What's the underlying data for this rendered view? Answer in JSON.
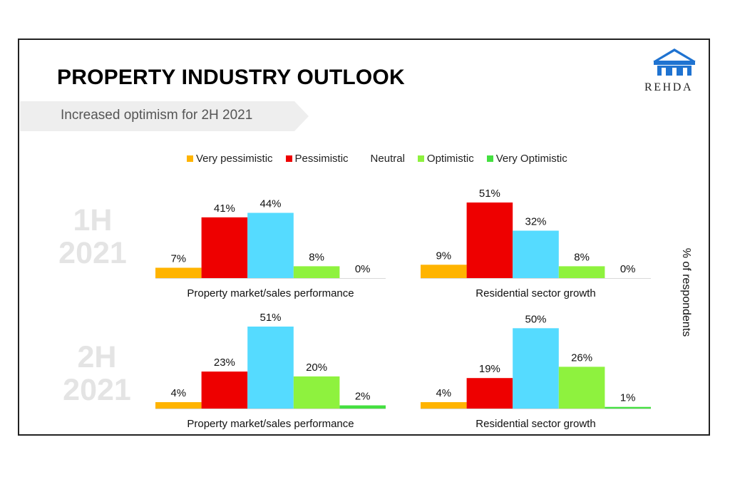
{
  "header": {
    "title": "PROPERTY INDUSTRY OUTLOOK",
    "subtitle": "Increased optimism for 2H 2021"
  },
  "logo": {
    "text": "REHDA",
    "icon": "house-logo-icon"
  },
  "colors": {
    "very_pessimistic": "#ffb400",
    "pessimistic": "#ee0000",
    "neutral": "#55dbff",
    "optimistic": "#8ef23e",
    "very_optimistic": "#44e040",
    "banner": "#eeeeee",
    "logo": "#1f73d1"
  },
  "legend": [
    {
      "label": "Very pessimistic",
      "color": "#ffb400"
    },
    {
      "label": "Pessimistic",
      "color": "#ee0000"
    },
    {
      "label": "Neutral",
      "color": "#55dbff"
    },
    {
      "label": "Optimistic",
      "color": "#8ef23e"
    },
    {
      "label": "Very Optimistic",
      "color": "#44e040"
    }
  ],
  "row_labels": [
    {
      "line1": "1H",
      "line2": "2021"
    },
    {
      "line1": "2H",
      "line2": "2021"
    }
  ],
  "y_axis_label": "% of respondents",
  "chart_data": [
    {
      "type": "bar",
      "period": "1H 2021",
      "title": "Property market/sales performance",
      "categories": [
        "Very pessimistic",
        "Pessimistic",
        "Neutral",
        "Optimistic",
        "Very Optimistic"
      ],
      "values": [
        7,
        41,
        44,
        8,
        0
      ],
      "labels": [
        "7%",
        "41%",
        "44%",
        "8%",
        "0%"
      ],
      "ylabel": "% of respondents",
      "ylim": [
        0,
        51
      ]
    },
    {
      "type": "bar",
      "period": "1H 2021",
      "title": "Residential sector growth",
      "categories": [
        "Very pessimistic",
        "Pessimistic",
        "Neutral",
        "Optimistic",
        "Very Optimistic"
      ],
      "values": [
        9,
        51,
        32,
        8,
        0
      ],
      "labels": [
        "9%",
        "51%",
        "32%",
        "8%",
        "0%"
      ],
      "ylabel": "% of respondents",
      "ylim": [
        0,
        51
      ]
    },
    {
      "type": "bar",
      "period": "2H 2021",
      "title": "Property market/sales performance",
      "categories": [
        "Very pessimistic",
        "Pessimistic",
        "Neutral",
        "Optimistic",
        "Very Optimistic"
      ],
      "values": [
        4,
        23,
        51,
        20,
        2
      ],
      "labels": [
        "4%",
        "23%",
        "51%",
        "20%",
        "2%"
      ],
      "ylabel": "% of respondents",
      "ylim": [
        0,
        51
      ]
    },
    {
      "type": "bar",
      "period": "2H 2021",
      "title": "Residential sector growth",
      "categories": [
        "Very pessimistic",
        "Pessimistic",
        "Neutral",
        "Optimistic",
        "Very Optimistic"
      ],
      "values": [
        4,
        19,
        50,
        26,
        1
      ],
      "labels": [
        "4%",
        "19%",
        "50%",
        "26%",
        "1%"
      ],
      "ylabel": "% of respondents",
      "ylim": [
        0,
        51
      ]
    }
  ]
}
